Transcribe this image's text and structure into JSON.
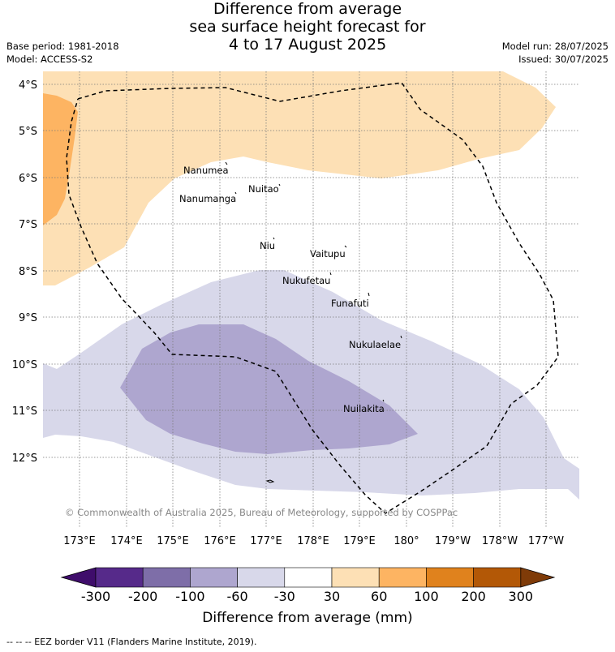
{
  "title_lines": [
    "Difference from average",
    "sea surface height forecast for",
    "4 to 17 August 2025"
  ],
  "base_period": "Base period: 1981-2018",
  "model": "Model: ACCESS-S2",
  "model_run": "Model run: 28/07/2025",
  "issued": "Issued: 30/07/2025",
  "lat_labels": [
    "4°S",
    "5°S",
    "6°S",
    "7°S",
    "8°S",
    "9°S",
    "10°S",
    "11°S",
    "12°S"
  ],
  "lon_labels": [
    "173°E",
    "174°E",
    "175°E",
    "176°E",
    "177°E",
    "178°E",
    "179°E",
    "180°",
    "179°W",
    "178°W",
    "177°W"
  ],
  "places": [
    "Nanumea",
    "Nuitao",
    "Nanumanga",
    "Niu",
    "Vaitupu",
    "Nukufetau",
    "Funafuti",
    "Nukulaelae",
    "Nuilakita"
  ],
  "copyright": "© Commonwealth of Australia 2025, Bureau of Meteorology, supported by COSPPac",
  "colorbar": {
    "tick_labels": [
      "-300",
      "-200",
      "-100",
      "-60",
      "-30",
      "30",
      "60",
      "100",
      "200",
      "300"
    ],
    "colors": [
      "#3f0d6b",
      "#562a8a",
      "#7e6ea8",
      "#aea6cf",
      "#d8d8ea",
      "#ffffff",
      "#fde0b5",
      "#fdb462",
      "#e0821d",
      "#b35806",
      "#7f3b08"
    ],
    "label": "Difference from average (mm)"
  },
  "footnote": "--  --  -- EEZ border V11 (Flanders Marine Institute, 2019)."
}
